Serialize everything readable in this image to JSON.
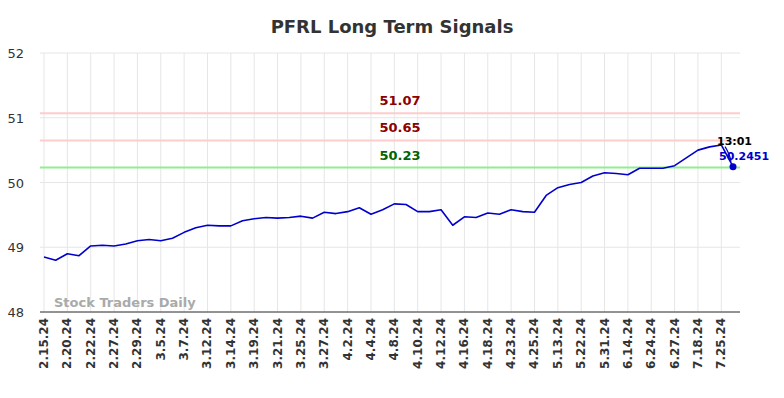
{
  "chart_data": {
    "type": "line",
    "title": "PFRL Long Term Signals",
    "categories": [
      "2.15.24",
      null,
      "2.20.24",
      null,
      "2.22.24",
      null,
      "2.27.24",
      null,
      "2.29.24",
      null,
      "3.5.24",
      null,
      "3.7.24",
      null,
      "3.12.24",
      null,
      "3.14.24",
      null,
      "3.19.24",
      null,
      "3.21.24",
      null,
      "3.25.24",
      null,
      "3.27.24",
      null,
      "4.2.24",
      null,
      "4.4.24",
      null,
      "4.8.24",
      null,
      "4.10.24",
      null,
      "4.12.24",
      null,
      "4.16.24",
      null,
      "4.18.24",
      null,
      "4.23.24",
      null,
      "4.25.24",
      null,
      "5.13.24",
      null,
      "5.22.24",
      null,
      "5.31.24",
      null,
      "6.14.24",
      null,
      "6.24.24",
      null,
      "6.27.24",
      null,
      "7.18.24",
      null,
      "7.25.24",
      null
    ],
    "series": [
      {
        "name": "PFRL",
        "color": "#0000cc",
        "values": [
          48.85,
          48.8,
          48.9,
          48.87,
          49.02,
          49.03,
          49.02,
          49.05,
          49.1,
          49.12,
          49.1,
          49.14,
          49.23,
          49.3,
          49.34,
          49.33,
          49.33,
          49.41,
          49.44,
          49.46,
          49.45,
          49.46,
          49.48,
          49.45,
          49.54,
          49.52,
          49.55,
          49.61,
          49.51,
          49.58,
          49.67,
          49.66,
          49.55,
          49.55,
          49.58,
          49.34,
          49.47,
          49.46,
          49.53,
          49.51,
          49.58,
          49.55,
          49.54,
          49.8,
          49.92,
          49.97,
          50.0,
          50.1,
          50.15,
          50.14,
          50.12,
          50.22,
          50.22,
          50.22,
          50.26,
          50.38,
          50.5,
          50.55,
          50.58,
          50.2451
        ]
      }
    ],
    "ylim": [
      48,
      52
    ],
    "yticks": [
      48,
      49,
      50,
      51,
      52
    ],
    "grid": true,
    "reference_lines": [
      {
        "value": 51.07,
        "color": "#ffcccc",
        "text_color": "#8b0000"
      },
      {
        "value": 50.65,
        "color": "#ffcccc",
        "text_color": "#8b0000"
      },
      {
        "value": 50.23,
        "color": "#90ee90",
        "text_color": "#006400"
      }
    ],
    "annotations": [
      {
        "text": "13:01"
      },
      {
        "text": "50.2451"
      }
    ],
    "watermark": "Stock Traders Daily"
  }
}
